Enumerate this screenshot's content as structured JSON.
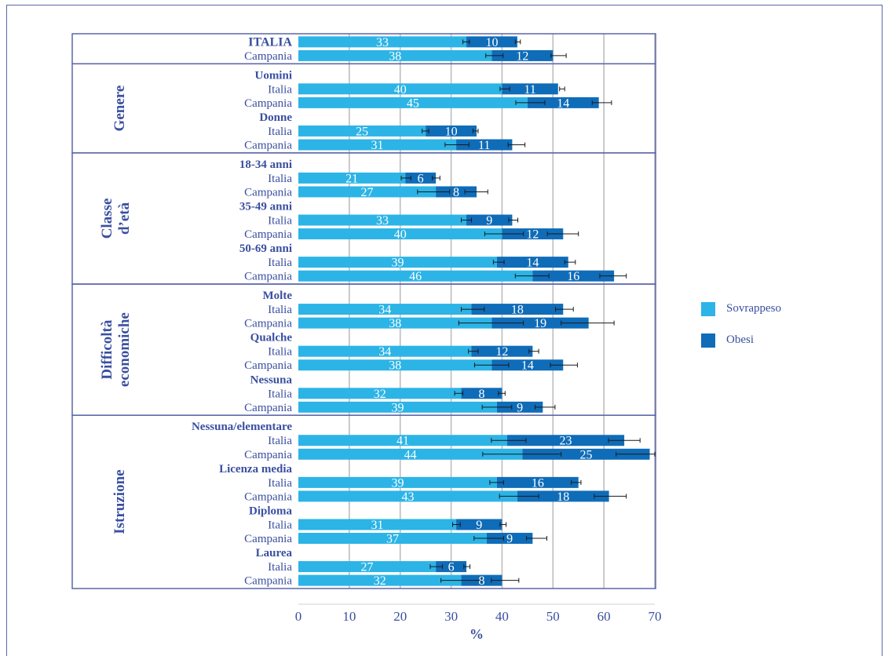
{
  "chart_data": {
    "type": "bar",
    "orientation": "horizontal",
    "stacked": true,
    "xlabel": "%",
    "xlim": [
      0,
      70
    ],
    "xticks": [
      0,
      10,
      20,
      30,
      40,
      50,
      60,
      70
    ],
    "grid": true,
    "legend_position": "right",
    "series": [
      {
        "name": "Sovrappeso",
        "color": "#2cb4e6"
      },
      {
        "name": "Obesi",
        "color": "#0f6cb8"
      }
    ],
    "sections": [
      {
        "title": "",
        "groups": [
          {
            "label": "",
            "rows": [
              {
                "label": "ITALIA",
                "bold": true,
                "sovrappeso": 33,
                "obesi": 10,
                "err_sovrappeso": [
                  32.3,
                  33.6
                ],
                "err_total": [
                  42.6,
                  43.6
                ]
              },
              {
                "label": "Campania",
                "sovrappeso": 38,
                "obesi": 12,
                "err_sovrappeso": [
                  36.8,
                  40.2
                ],
                "err_total": [
                  49.6,
                  52.6
                ]
              }
            ]
          }
        ]
      },
      {
        "title": "Genere",
        "groups": [
          {
            "label": "Uomini",
            "rows": [
              {
                "label": "Italia",
                "sovrappeso": 40,
                "obesi": 11,
                "err_sovrappeso": [
                  39.6,
                  41.5
                ],
                "err_total": [
                  51.3,
                  52.3
                ]
              },
              {
                "label": "Campania",
                "sovrappeso": 45,
                "obesi": 14,
                "err_sovrappeso": [
                  42.7,
                  48.4
                ],
                "err_total": [
                  57.7,
                  61.5
                ]
              }
            ]
          },
          {
            "label": "Donne",
            "rows": [
              {
                "label": "Italia",
                "sovrappeso": 25,
                "obesi": 10,
                "err_sovrappeso": [
                  24.3,
                  25.6
                ],
                "err_total": [
                  34.3,
                  35.3
                ]
              },
              {
                "label": "Campania",
                "sovrappeso": 31,
                "obesi": 11,
                "err_sovrappeso": [
                  28.8,
                  33.5
                ],
                "err_total": [
                  41.2,
                  44.5
                ]
              }
            ]
          }
        ]
      },
      {
        "title": "Classe d’età",
        "groups": [
          {
            "label": "18-34 anni",
            "rows": [
              {
                "label": "Italia",
                "sovrappeso": 21,
                "obesi": 6,
                "err_sovrappeso": [
                  20.2,
                  22.1
                ],
                "err_total": [
                  26.3,
                  27.8
                ]
              },
              {
                "label": "Campania",
                "sovrappeso": 27,
                "obesi": 8,
                "err_sovrappeso": [
                  23.4,
                  29.7
                ],
                "err_total": [
                  32.7,
                  37.2
                ]
              }
            ]
          },
          {
            "label": "35-49 anni",
            "rows": [
              {
                "label": "Italia",
                "sovrappeso": 33,
                "obesi": 9,
                "err_sovrappeso": [
                  32.0,
                  34.0
                ],
                "err_total": [
                  41.3,
                  43.1
                ]
              },
              {
                "label": "Campania",
                "sovrappeso": 40,
                "obesi": 12,
                "err_sovrappeso": [
                  36.6,
                  44.2
                ],
                "err_total": [
                  48.9,
                  55.0
                ]
              }
            ]
          },
          {
            "label": "50-69 anni",
            "rows": [
              {
                "label": "Italia",
                "sovrappeso": 39,
                "obesi": 14,
                "err_sovrappeso": [
                  38.3,
                  40.4
                ],
                "err_total": [
                  52.3,
                  54.4
                ]
              },
              {
                "label": "Campania",
                "sovrappeso": 46,
                "obesi": 16,
                "err_sovrappeso": [
                  42.6,
                  49.2
                ],
                "err_total": [
                  59.2,
                  64.4
                ]
              }
            ]
          }
        ]
      },
      {
        "title": "Difficoltà economiche",
        "groups": [
          {
            "label": "Molte",
            "rows": [
              {
                "label": "Italia",
                "sovrappeso": 34,
                "obesi": 18,
                "err_sovrappeso": [
                  32.0,
                  36.5
                ],
                "err_total": [
                  50.5,
                  54.0
                ]
              },
              {
                "label": "Campania",
                "sovrappeso": 38,
                "obesi": 19,
                "err_sovrappeso": [
                  31.5,
                  44.2
                ],
                "err_total": [
                  51.6,
                  62.0
                ]
              }
            ]
          },
          {
            "label": "Qualche",
            "rows": [
              {
                "label": "Italia",
                "sovrappeso": 34,
                "obesi": 12,
                "err_sovrappeso": [
                  33.4,
                  35.3
                ],
                "err_total": [
                  45.3,
                  47.2
                ]
              },
              {
                "label": "Campania",
                "sovrappeso": 38,
                "obesi": 14,
                "err_sovrappeso": [
                  34.6,
                  41.3
                ],
                "err_total": [
                  49.5,
                  54.8
                ]
              }
            ]
          },
          {
            "label": "Nessuna",
            "rows": [
              {
                "label": "Italia",
                "sovrappeso": 32,
                "obesi": 8,
                "err_sovrappeso": [
                  30.7,
                  32.3
                ],
                "err_total": [
                  39.3,
                  40.6
                ]
              },
              {
                "label": "Campania",
                "sovrappeso": 39,
                "obesi": 9,
                "err_sovrappeso": [
                  36.1,
                  41.9
                ],
                "err_total": [
                  46.5,
                  50.4
                ]
              }
            ]
          }
        ]
      },
      {
        "title": "Istruzione",
        "groups": [
          {
            "label": "Nessuna/elementare",
            "rows": [
              {
                "label": "Italia",
                "sovrappeso": 41,
                "obesi": 23,
                "err_sovrappeso": [
                  37.9,
                  44.7
                ],
                "err_total": [
                  60.9,
                  67.1
                ]
              },
              {
                "label": "Campania",
                "sovrappeso": 44,
                "obesi": 25,
                "err_sovrappeso": [
                  36.2,
                  51.6
                ],
                "err_total": [
                  62.4,
                  70.0
                ]
              }
            ]
          },
          {
            "label": "Licenza media",
            "rows": [
              {
                "label": "Italia",
                "sovrappeso": 39,
                "obesi": 16,
                "err_sovrappeso": [
                  37.6,
                  40.3
                ],
                "err_total": [
                  53.6,
                  55.5
                ]
              },
              {
                "label": "Campania",
                "sovrappeso": 43,
                "obesi": 18,
                "err_sovrappeso": [
                  39.5,
                  47.2
                ],
                "err_total": [
                  58.1,
                  64.4
                ]
              }
            ]
          },
          {
            "label": "Diploma",
            "rows": [
              {
                "label": "Italia",
                "sovrappeso": 31,
                "obesi": 9,
                "err_sovrappeso": [
                  30.3,
                  31.8
                ],
                "err_total": [
                  39.6,
                  40.8
                ]
              },
              {
                "label": "Campania",
                "sovrappeso": 37,
                "obesi": 9,
                "err_sovrappeso": [
                  34.5,
                  40.3
                ],
                "err_total": [
                  44.8,
                  48.8
                ]
              }
            ]
          },
          {
            "label": "Laurea",
            "rows": [
              {
                "label": "Italia",
                "sovrappeso": 27,
                "obesi": 6,
                "err_sovrappeso": [
                  25.9,
                  28.3
                ],
                "err_total": [
                  32.5,
                  33.7
                ]
              },
              {
                "label": "Campania",
                "sovrappeso": 32,
                "obesi": 8,
                "err_sovrappeso": [
                  28.0,
                  35.9
                ],
                "err_total": [
                  37.9,
                  43.3
                ]
              }
            ]
          }
        ]
      }
    ]
  }
}
